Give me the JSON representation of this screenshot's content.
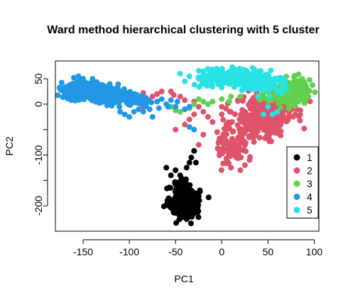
{
  "chart_data": {
    "type": "scatter",
    "title": "Ward method hierarchical clustering with 5 cluster",
    "xlabel": "PC1",
    "ylabel": "PC2",
    "xlim": [
      -180,
      105
    ],
    "ylim": [
      -250,
      85
    ],
    "xticks": [
      -150,
      -100,
      -50,
      0,
      50,
      100
    ],
    "xtick_labels": [
      "-150",
      "-100",
      "-50",
      "0",
      "50",
      "100"
    ],
    "yticks": [
      50,
      0,
      -50,
      -100,
      -150,
      -200
    ],
    "ytick_labels": [
      "50",
      "0",
      "",
      "-100",
      "",
      "-200"
    ],
    "grid": false,
    "legend_position": "bottom-right",
    "series": [
      {
        "name": "1",
        "color": "#000000",
        "clusters": [
          {
            "cx": -40,
            "cy": -195,
            "sx": 8,
            "sy": 15,
            "n": 230
          },
          {
            "cx": -42,
            "cy": -165,
            "sx": 6,
            "sy": 10,
            "n": 50
          }
        ],
        "extra": [
          [
            -30,
            -92
          ],
          [
            -33,
            -105
          ],
          [
            -35,
            -115
          ],
          [
            -38,
            -125
          ],
          [
            -45,
            -140
          ],
          [
            -55,
            -140
          ],
          [
            -28,
            -115
          ],
          [
            -50,
            -130
          ],
          [
            -60,
            -125
          ]
        ]
      },
      {
        "name": "2",
        "color": "#DF536B",
        "clusters": [
          {
            "cx": 45,
            "cy": -30,
            "sx": 15,
            "sy": 20,
            "n": 260
          },
          {
            "cx": 55,
            "cy": -5,
            "sx": 14,
            "sy": 10,
            "n": 120
          },
          {
            "cx": 12,
            "cy": -80,
            "sx": 8,
            "sy": 20,
            "n": 90
          }
        ],
        "extra": [
          [
            -85,
            22
          ],
          [
            -80,
            8
          ],
          [
            -75,
            15
          ],
          [
            -70,
            20
          ],
          [
            -65,
            25
          ],
          [
            -55,
            25
          ],
          [
            -52,
            18
          ],
          [
            -45,
            15
          ],
          [
            -40,
            8
          ],
          [
            -30,
            5
          ],
          [
            -25,
            -5
          ],
          [
            -20,
            -15
          ],
          [
            -15,
            -25
          ],
          [
            -10,
            -35
          ],
          [
            -50,
            -50
          ],
          [
            -40,
            -40
          ],
          [
            -35,
            -30
          ],
          [
            -30,
            -20
          ],
          [
            -20,
            -60
          ],
          [
            -25,
            -80
          ],
          [
            0,
            -20
          ],
          [
            0,
            -5
          ],
          [
            5,
            -40
          ],
          [
            -5,
            -55
          ],
          [
            20,
            -130
          ],
          [
            25,
            -120
          ],
          [
            30,
            -110
          ],
          [
            10,
            -125
          ],
          [
            -85,
            -5
          ],
          [
            -90,
            2
          ]
        ]
      },
      {
        "name": "3",
        "color": "#61D04F",
        "clusters": [
          {
            "cx": 80,
            "cy": 25,
            "sx": 8,
            "sy": 12,
            "n": 200
          },
          {
            "cx": 60,
            "cy": 20,
            "sx": 10,
            "sy": 10,
            "n": 80
          }
        ],
        "extra": [
          [
            -55,
            -5
          ],
          [
            -50,
            -12
          ],
          [
            -45,
            -15
          ],
          [
            -40,
            -10
          ],
          [
            -35,
            -8
          ],
          [
            -30,
            0
          ],
          [
            -20,
            5
          ],
          [
            -10,
            5
          ],
          [
            0,
            10
          ],
          [
            8,
            5
          ],
          [
            10,
            15
          ],
          [
            20,
            15
          ],
          [
            -25,
            10
          ],
          [
            -15,
            0
          ]
        ]
      },
      {
        "name": "4",
        "color": "#2297E6",
        "clusters": [
          {
            "cx": -150,
            "cy": 28,
            "sx": 12,
            "sy": 8,
            "n": 250
          },
          {
            "cx": -120,
            "cy": 15,
            "sx": 12,
            "sy": 8,
            "n": 150
          },
          {
            "cx": -95,
            "cy": 8,
            "sx": 8,
            "sy": 8,
            "n": 40
          }
        ],
        "extra": [
          [
            -155,
            55
          ],
          [
            -150,
            50
          ],
          [
            -160,
            52
          ],
          [
            -140,
            45
          ],
          [
            -60,
            0
          ],
          [
            -58,
            -5
          ],
          [
            -55,
            8
          ],
          [
            -50,
            -5
          ],
          [
            -48,
            5
          ],
          [
            -40,
            -10
          ],
          [
            -35,
            -5
          ],
          [
            -35,
            -45
          ],
          [
            -30,
            -50
          ],
          [
            -100,
            -25
          ],
          [
            -105,
            -20
          ],
          [
            -95,
            -15
          ],
          [
            -90,
            -10
          ],
          [
            -85,
            -15
          ],
          [
            -75,
            -25
          ],
          [
            -110,
            -15
          ],
          [
            -82,
            0
          ],
          [
            -78,
            -10
          ],
          [
            -70,
            5
          ],
          [
            -68,
            -8
          ],
          [
            -65,
            10
          ]
        ]
      },
      {
        "name": "5",
        "color": "#28E2E5",
        "clusters": [
          {
            "cx": 15,
            "cy": 52,
            "sx": 18,
            "sy": 8,
            "n": 280
          },
          {
            "cx": 45,
            "cy": 40,
            "sx": 12,
            "sy": 8,
            "n": 90
          }
        ],
        "extra": [
          [
            -45,
            60
          ],
          [
            -40,
            45
          ],
          [
            -35,
            55
          ],
          [
            -20,
            40
          ],
          [
            60,
            25
          ],
          [
            65,
            20
          ],
          [
            70,
            30
          ],
          [
            55,
            -20
          ],
          [
            45,
            -20
          ],
          [
            60,
            -15
          ],
          [
            50,
            -5
          ],
          [
            35,
            50
          ]
        ]
      }
    ]
  }
}
